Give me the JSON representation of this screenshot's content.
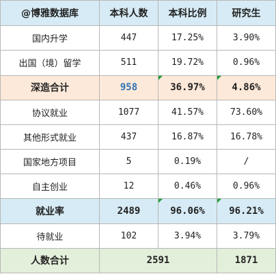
{
  "header": {
    "c1": "@博雅数据库",
    "c2": "本科人数",
    "c3": "本科比例",
    "c4": "研究生"
  },
  "rows": [
    {
      "label": "国内升学",
      "count": "447",
      "ratio": "17.25%",
      "grad": "3.90%"
    },
    {
      "label": "出国（境）留学",
      "count": "511",
      "ratio": "19.72%",
      "grad": "0.96%"
    },
    {
      "label": "深造合计",
      "count": "958",
      "ratio": "36.97%",
      "grad": "4.86%"
    },
    {
      "label": "协议就业",
      "count": "1077",
      "ratio": "41.57%",
      "grad": "73.60%"
    },
    {
      "label": "其他形式就业",
      "count": "437",
      "ratio": "16.87%",
      "grad": "16.78%"
    },
    {
      "label": "国家地方项目",
      "count": "5",
      "ratio": "0.19%",
      "grad": "/"
    },
    {
      "label": "自主创业",
      "count": "12",
      "ratio": "0.46%",
      "grad": "0.96%"
    },
    {
      "label": "就业率",
      "count": "2489",
      "ratio": "96.06%",
      "grad": "96.21%"
    },
    {
      "label": "待就业",
      "count": "102",
      "ratio": "3.94%",
      "grad": "3.79%"
    }
  ],
  "total": {
    "label": "人数合计",
    "undergrad": "2591",
    "grad": "1871"
  }
}
